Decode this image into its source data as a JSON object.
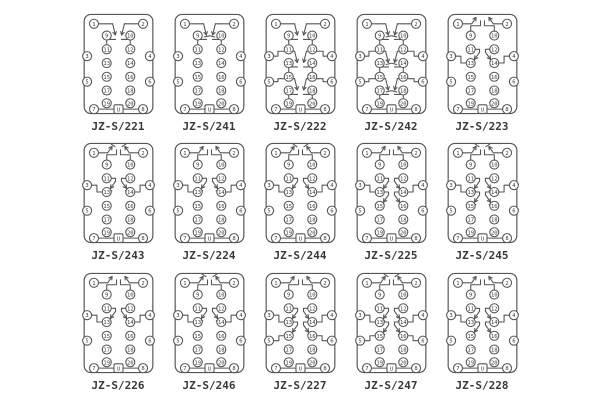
{
  "canvas": {
    "background": "#ffffff"
  },
  "style": {
    "line_color": "#56565a",
    "text_color": "#3a3a3c"
  },
  "socket": {
    "terminals": [
      "1",
      "2",
      "3",
      "4",
      "5",
      "6",
      "7",
      "8",
      "9",
      "10",
      "11",
      "12",
      "13",
      "14",
      "15",
      "16",
      "17",
      "18",
      "19",
      "20"
    ],
    "power_label": "U"
  },
  "diagrams": [
    {
      "label": "JZ-S/221",
      "contacts": [
        {
          "zone": "upper",
          "type": "NO"
        }
      ]
    },
    {
      "label": "JZ-S/241",
      "contacts": [
        {
          "zone": "upper",
          "type": "NC"
        }
      ]
    },
    {
      "label": "JZ-S/222",
      "contacts": [
        {
          "zone": "upper",
          "type": "NO"
        },
        {
          "zone": "middle",
          "type": "NO"
        },
        {
          "zone": "lower",
          "type": "NO"
        }
      ]
    },
    {
      "label": "JZ-S/242",
      "contacts": [
        {
          "zone": "upper",
          "type": "NC"
        },
        {
          "zone": "middle",
          "type": "NC"
        },
        {
          "zone": "lower",
          "type": "NC"
        }
      ]
    },
    {
      "label": "JZ-S/223",
      "contacts": [
        {
          "zone": "top",
          "type": "NO"
        },
        {
          "zone": "mid",
          "type": "NO"
        }
      ]
    },
    {
      "label": "JZ-S/243",
      "contacts": [
        {
          "zone": "top",
          "type": "NC"
        },
        {
          "zone": "mid",
          "type": "NC"
        }
      ]
    },
    {
      "label": "JZ-S/224",
      "contacts": [
        {
          "zone": "top",
          "type": "NO"
        },
        {
          "zone": "mid",
          "type": "NC"
        }
      ]
    },
    {
      "label": "JZ-S/244",
      "contacts": [
        {
          "zone": "top",
          "type": "NC"
        },
        {
          "zone": "mid",
          "type": "NO"
        }
      ]
    },
    {
      "label": "JZ-S/225",
      "contacts": [
        {
          "zone": "top",
          "type": "NO"
        },
        {
          "zone": "mid",
          "type": "NO"
        },
        {
          "zone": "low2",
          "type": "NO"
        }
      ]
    },
    {
      "label": "JZ-S/245",
      "contacts": [
        {
          "zone": "top",
          "type": "NC"
        },
        {
          "zone": "mid",
          "type": "NC"
        },
        {
          "zone": "low2",
          "type": "NC"
        }
      ]
    },
    {
      "label": "JZ-S/226",
      "contacts": [
        {
          "zone": "top",
          "type": "NO"
        },
        {
          "zone": "mid",
          "type": "NO"
        }
      ]
    },
    {
      "label": "JZ-S/246",
      "contacts": [
        {
          "zone": "top",
          "type": "NC"
        },
        {
          "zone": "mid",
          "type": "NC"
        }
      ]
    },
    {
      "label": "JZ-S/227",
      "contacts": [
        {
          "zone": "top",
          "type": "NO"
        },
        {
          "zone": "mid",
          "type": "NO"
        },
        {
          "zone": "low",
          "type": "NO"
        }
      ]
    },
    {
      "label": "JZ-S/247",
      "contacts": [
        {
          "zone": "top",
          "type": "NC"
        },
        {
          "zone": "mid",
          "type": "NC"
        },
        {
          "zone": "low",
          "type": "NC"
        }
      ]
    },
    {
      "label": "JZ-S/228",
      "contacts": [
        {
          "zone": "top",
          "type": "NO"
        },
        {
          "zone": "mid",
          "type": "NO"
        },
        {
          "zone": "low2",
          "type": "NO"
        }
      ]
    }
  ]
}
